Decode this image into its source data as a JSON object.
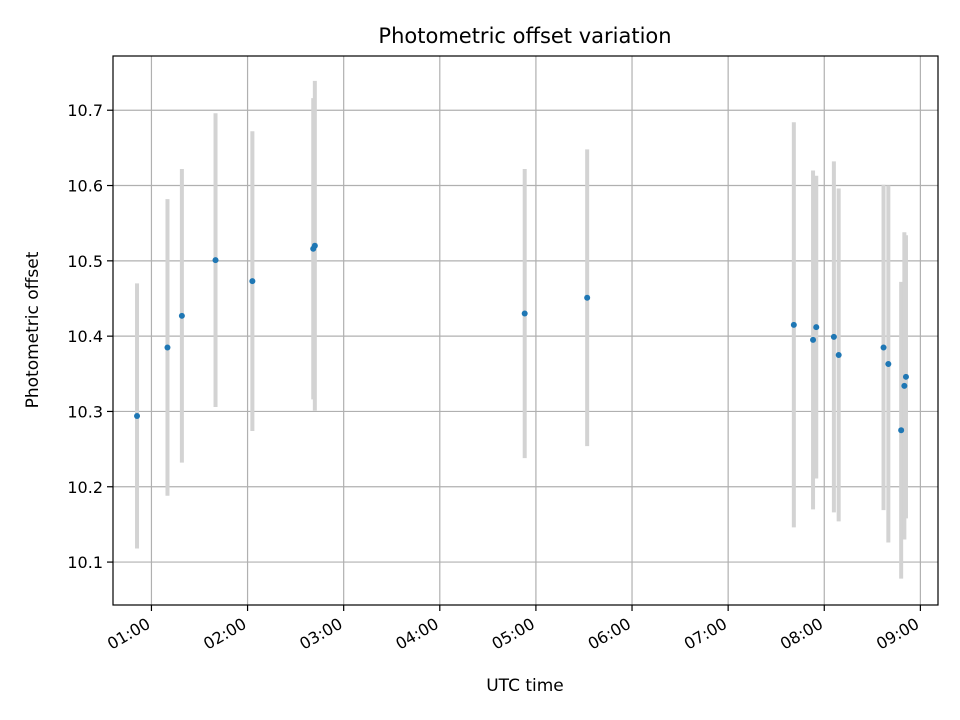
{
  "chart_data": {
    "type": "scatter",
    "title": "Photometric offset variation",
    "xlabel": "UTC time",
    "ylabel": "Photometric offset",
    "x_ticks": [
      "01:00",
      "02:00",
      "03:00",
      "04:00",
      "05:00",
      "06:00",
      "07:00",
      "08:00",
      "09:00"
    ],
    "y_ticks": [
      "10.1",
      "10.2",
      "10.3",
      "10.4",
      "10.5",
      "10.6",
      "10.7"
    ],
    "xlim": [
      "00:36",
      "09:11"
    ],
    "ylim": [
      10.043,
      10.772
    ],
    "grid": true,
    "marker_color": "#1f77b4",
    "errorbar_color": "#d3d3d3",
    "points": [
      {
        "t": "00:51",
        "y": 10.294,
        "err": 0.176
      },
      {
        "t": "01:10",
        "y": 10.385,
        "err": 0.197
      },
      {
        "t": "01:19",
        "y": 10.427,
        "err": 0.195
      },
      {
        "t": "01:40",
        "y": 10.501,
        "err": 0.195
      },
      {
        "t": "02:03",
        "y": 10.473,
        "err": 0.199
      },
      {
        "t": "02:41",
        "y": 10.516,
        "err": 0.2
      },
      {
        "t": "02:42",
        "y": 10.52,
        "err": 0.219
      },
      {
        "t": "04:53",
        "y": 10.43,
        "err": 0.192
      },
      {
        "t": "05:32",
        "y": 10.451,
        "err": 0.197
      },
      {
        "t": "07:41",
        "y": 10.415,
        "err": 0.269
      },
      {
        "t": "07:53",
        "y": 10.395,
        "err": 0.225
      },
      {
        "t": "07:55",
        "y": 10.412,
        "err": 0.201
      },
      {
        "t": "08:06",
        "y": 10.399,
        "err": 0.233
      },
      {
        "t": "08:09",
        "y": 10.375,
        "err": 0.221
      },
      {
        "t": "08:37",
        "y": 10.385,
        "err": 0.216
      },
      {
        "t": "08:40",
        "y": 10.363,
        "err": 0.237
      },
      {
        "t": "08:48",
        "y": 10.275,
        "err": 0.197
      },
      {
        "t": "08:50",
        "y": 10.334,
        "err": 0.204
      },
      {
        "t": "08:51",
        "y": 10.346,
        "err": 0.188
      }
    ]
  }
}
